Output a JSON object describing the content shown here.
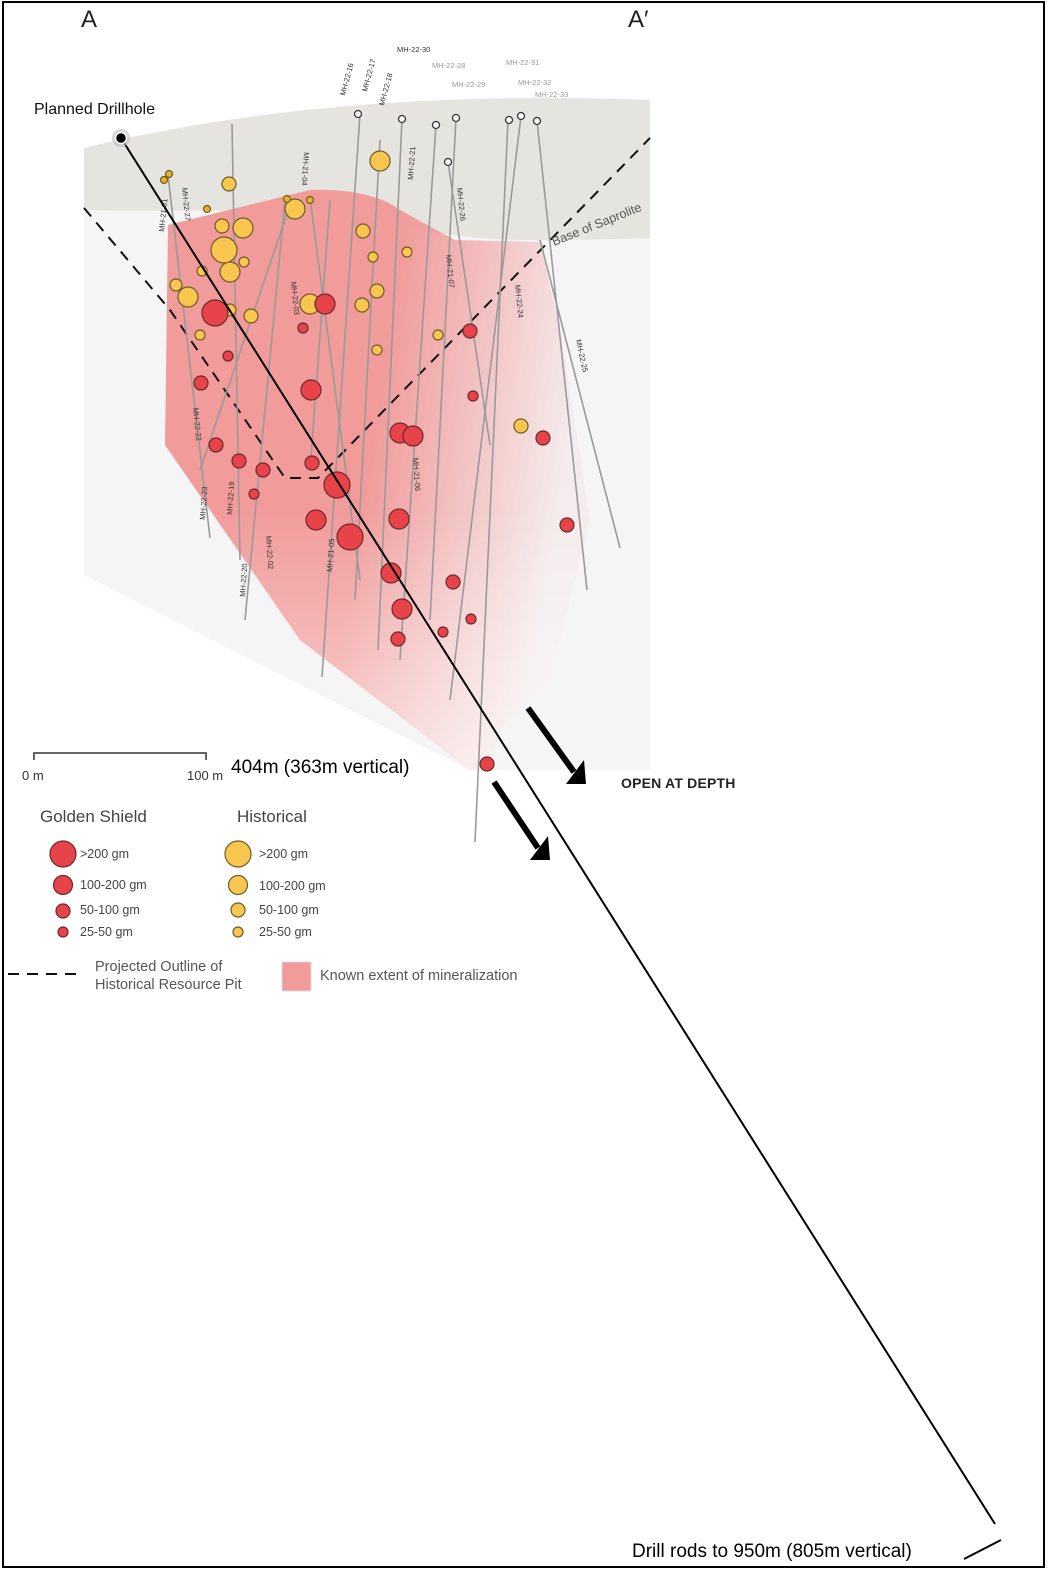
{
  "section": {
    "start_label": "A",
    "end_label": "A′",
    "planned_drillhole_label": "Planned Drillhole",
    "saprolite_label": "Base of Saprolite",
    "depth_marker_label": "404m (363m vertical)",
    "open_at_depth_label": "OPEN AT DEPTH",
    "drill_rods_label": "Drill rods to 950m (805m vertical)"
  },
  "scale_bar": {
    "start_label": "0 m",
    "end_label": "100 m"
  },
  "drillholes": [
    {
      "id": "MH-22-30",
      "faded": false
    },
    {
      "id": "MH-22-16",
      "faded": false
    },
    {
      "id": "MH-22-17",
      "faded": false
    },
    {
      "id": "MH-22-18",
      "faded": false
    },
    {
      "id": "MH-22-28",
      "faded": true
    },
    {
      "id": "MH-22-29",
      "faded": true
    },
    {
      "id": "MH-22-31",
      "faded": true
    },
    {
      "id": "MH-22-32",
      "faded": true
    },
    {
      "id": "MH-22-33",
      "faded": true
    },
    {
      "id": "MH-21-04",
      "faded": false
    },
    {
      "id": "MH-22-21",
      "faded": false
    },
    {
      "id": "MH-22-26",
      "faded": false
    },
    {
      "id": "MH-21-07",
      "faded": false
    },
    {
      "id": "MH-22-24",
      "faded": false
    },
    {
      "id": "MH-22-25",
      "faded": false
    },
    {
      "id": "MH-21-01",
      "faded": false
    },
    {
      "id": "MH-22-27",
      "faded": false
    },
    {
      "id": "MH-22-03",
      "faded": false
    },
    {
      "id": "MH-22-22",
      "faded": false
    },
    {
      "id": "MH-22-23",
      "faded": false
    },
    {
      "id": "MH-22-19",
      "faded": false
    },
    {
      "id": "MH-22-02",
      "faded": false
    },
    {
      "id": "MH-22-20",
      "faded": false
    },
    {
      "id": "MH-21-05",
      "faded": false
    },
    {
      "id": "MH-21-06",
      "faded": false
    }
  ],
  "legend": {
    "golden_shield": {
      "title": "Golden Shield",
      "items": [
        ">200 gm",
        "100-200 gm",
        "50-100 gm",
        "25-50 gm"
      ]
    },
    "historical": {
      "title": "Historical",
      "items": [
        ">200 gm",
        "100-200 gm",
        "50-100 gm",
        "25-50 gm"
      ]
    },
    "pit_outline_label": "Projected Outline of Historical Resource Pit",
    "mineralization_label": "Known extent of mineralization"
  },
  "colors": {
    "golden_shield_fill": "#e8424a",
    "historical_fill": "#f9c64f",
    "mineralization_fill": "#f19b9b",
    "saprolite_fill": "#e6e4de",
    "pit_outline": "#111111"
  }
}
